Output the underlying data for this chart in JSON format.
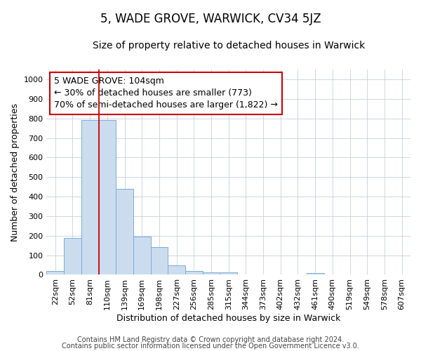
{
  "title": "5, WADE GROVE, WARWICK, CV34 5JZ",
  "subtitle": "Size of property relative to detached houses in Warwick",
  "xlabel": "Distribution of detached houses by size in Warwick",
  "ylabel": "Number of detached properties",
  "bar_color": "#ccdcef",
  "bar_edge_color": "#7aadd4",
  "categories": [
    "22sqm",
    "52sqm",
    "81sqm",
    "110sqm",
    "139sqm",
    "169sqm",
    "198sqm",
    "227sqm",
    "256sqm",
    "285sqm",
    "315sqm",
    "344sqm",
    "373sqm",
    "402sqm",
    "432sqm",
    "461sqm",
    "490sqm",
    "519sqm",
    "549sqm",
    "578sqm",
    "607sqm"
  ],
  "values": [
    18,
    190,
    790,
    790,
    440,
    195,
    142,
    50,
    20,
    14,
    12,
    0,
    0,
    0,
    0,
    10,
    0,
    0,
    0,
    0,
    0
  ],
  "ylim": [
    0,
    1050
  ],
  "yticks": [
    0,
    100,
    200,
    300,
    400,
    500,
    600,
    700,
    800,
    900,
    1000
  ],
  "vline_x_index": 2.5,
  "vline_color": "#cc0000",
  "annotation_text": "5 WADE GROVE: 104sqm\n← 30% of detached houses are smaller (773)\n70% of semi-detached houses are larger (1,822) →",
  "annotation_box_color": "#ffffff",
  "annotation_box_edge": "#cc0000",
  "footer1": "Contains HM Land Registry data © Crown copyright and database right 2024.",
  "footer2": "Contains public sector information licensed under the Open Government Licence v3.0.",
  "background_color": "#ffffff",
  "grid_color": "#c8d0de",
  "title_fontsize": 12,
  "subtitle_fontsize": 10,
  "axis_label_fontsize": 9,
  "tick_fontsize": 8,
  "annotation_fontsize": 9,
  "footer_fontsize": 7
}
